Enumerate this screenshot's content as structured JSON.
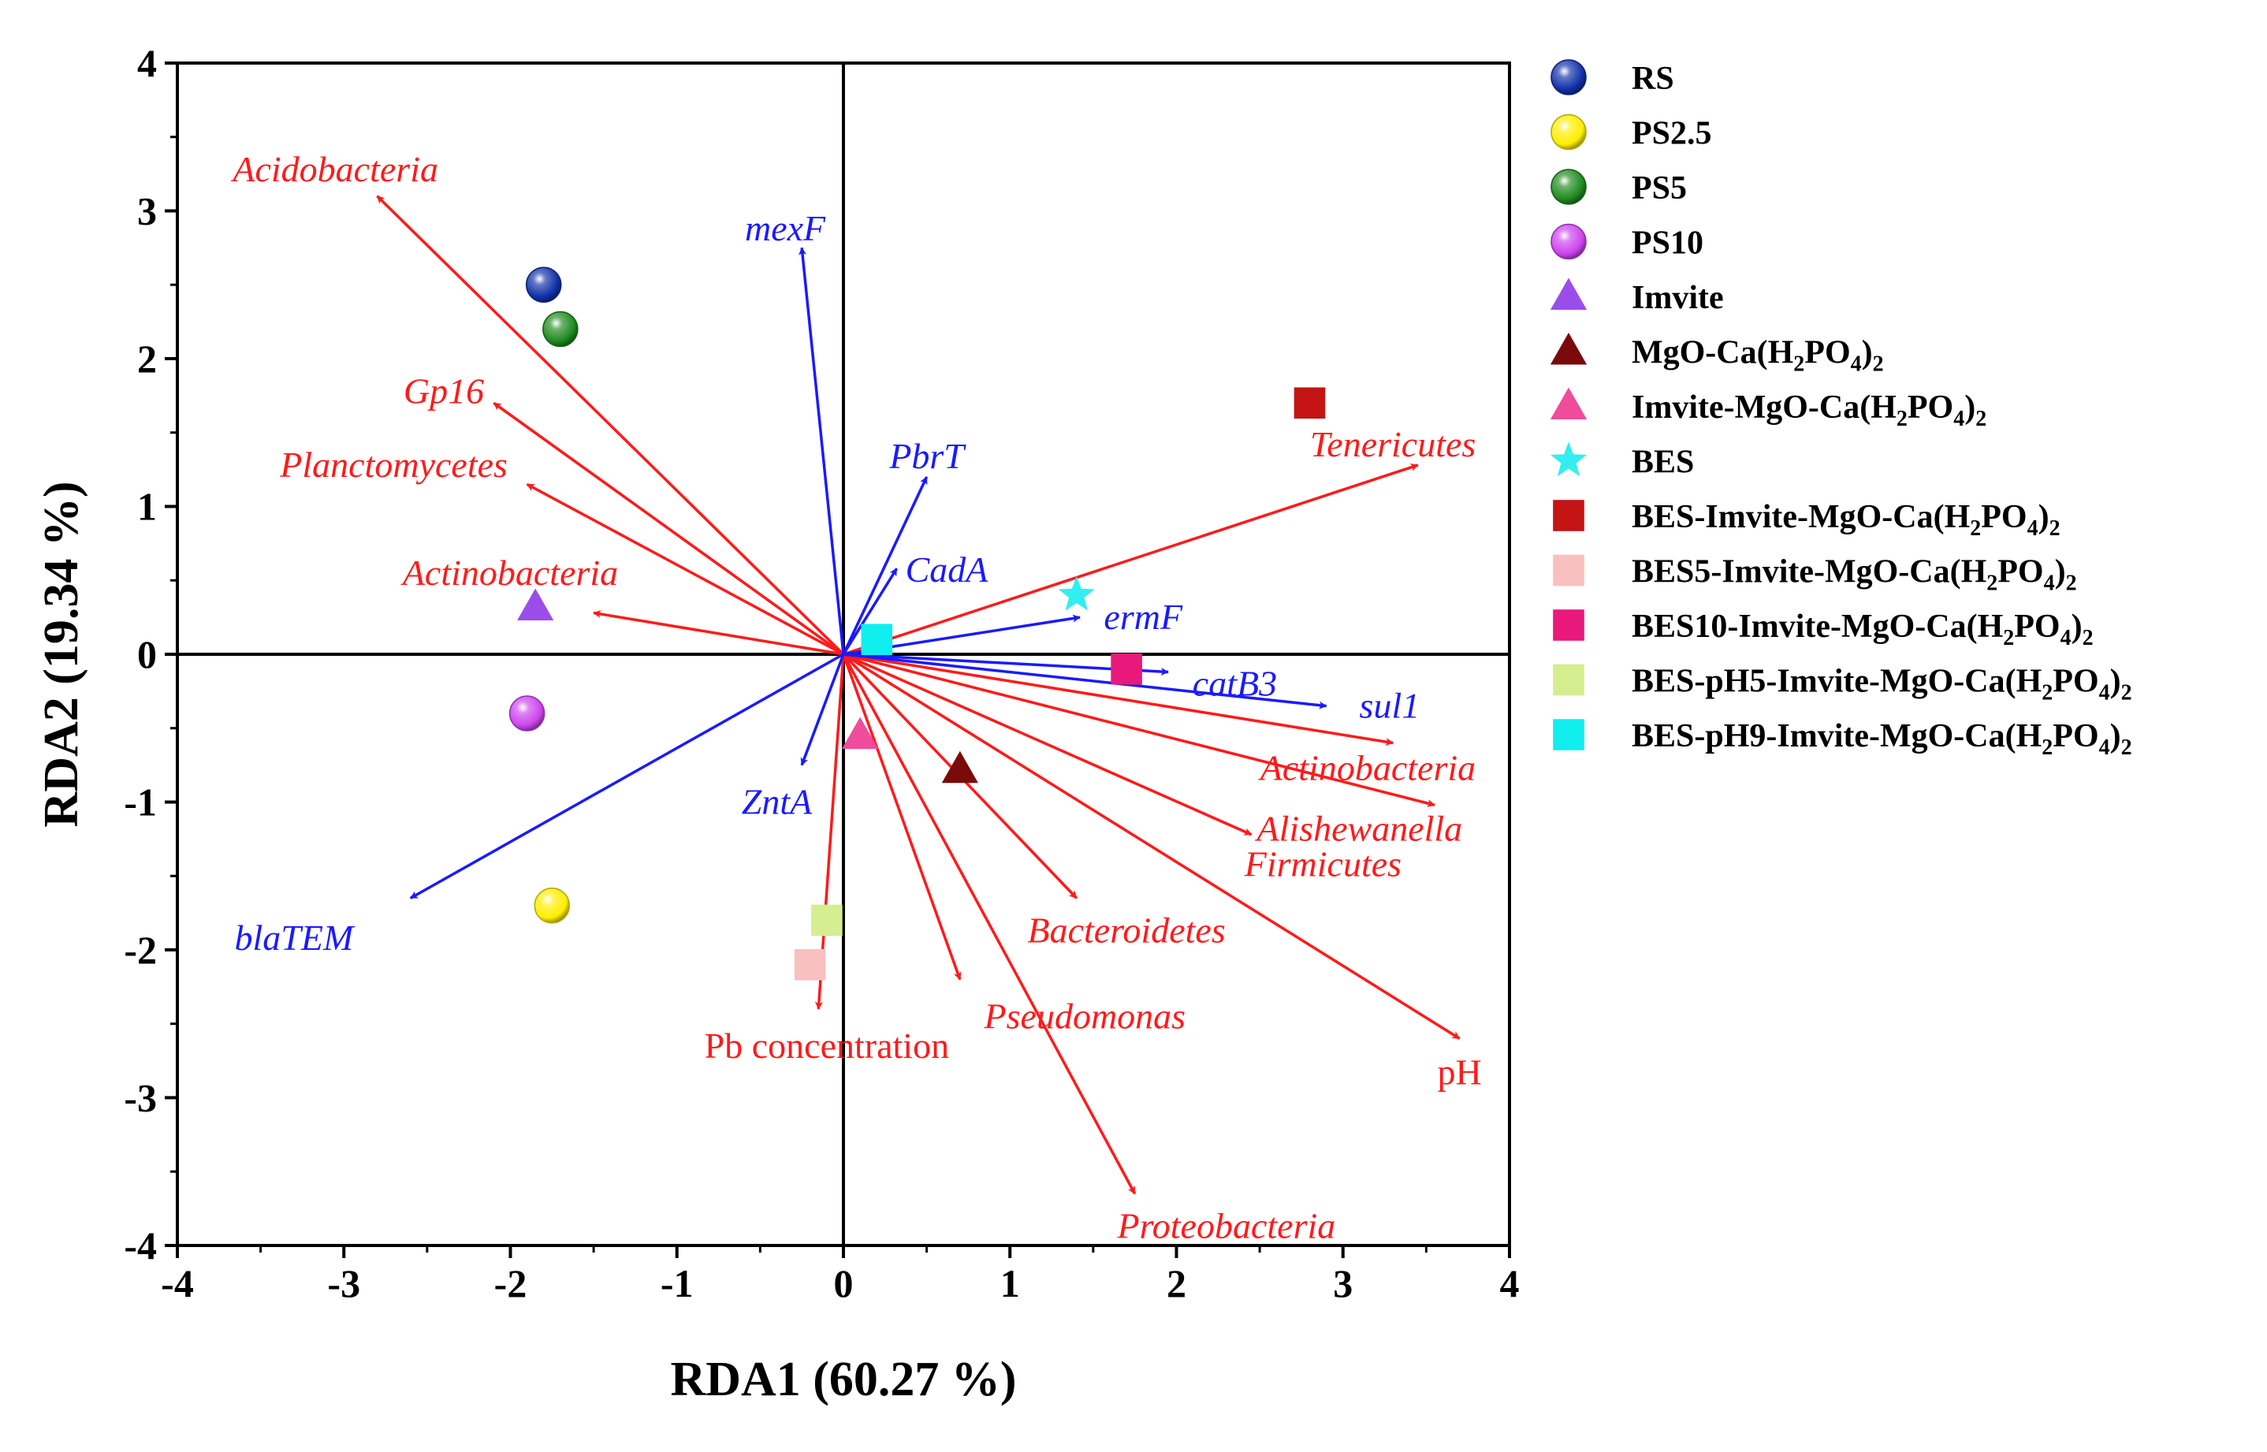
{
  "chart_data": {
    "type": "scatter",
    "subtype": "rda-biplot",
    "title": "",
    "xlabel": "RDA1 (60.27 %)",
    "ylabel": "RDA2 (19.34 %)",
    "xlim": [
      -4,
      4
    ],
    "ylim": [
      -4,
      4
    ],
    "xticks": [
      "-4",
      "-3",
      "-2",
      "-1",
      "0",
      "1",
      "2",
      "3",
      "4"
    ],
    "yticks": [
      "-4",
      "-3",
      "-2",
      "-1",
      "0",
      "1",
      "2",
      "3",
      "4"
    ],
    "grid": false,
    "legend_position": "right",
    "colors": {
      "env_vector": "#ff1a1a",
      "arg_vector": "#1a1aff"
    },
    "red_vectors": [
      {
        "label": "Acidobacteria",
        "italic": true,
        "end": [
          -2.8,
          3.1
        ]
      },
      {
        "label": "Gp16",
        "italic": true,
        "end": [
          -2.1,
          1.7
        ]
      },
      {
        "label": "Planctomycetes",
        "italic": true,
        "end": [
          -1.9,
          1.15
        ]
      },
      {
        "label": "Actinobacteria",
        "italic": true,
        "end": [
          -1.5,
          0.28
        ]
      },
      {
        "label": "Tenericutes",
        "italic": true,
        "end": [
          3.45,
          1.28
        ]
      },
      {
        "label": "Actinobacteria",
        "italic": true,
        "end": [
          3.3,
          -0.6
        ]
      },
      {
        "label": "Alishewanella",
        "italic": true,
        "end": [
          3.55,
          -1.02
        ]
      },
      {
        "label": "Firmicutes",
        "italic": true,
        "end": [
          2.45,
          -1.22
        ]
      },
      {
        "label": "pH",
        "italic": false,
        "end": [
          3.7,
          -2.6
        ]
      },
      {
        "label": "Bacteroidetes",
        "italic": true,
        "end": [
          1.4,
          -1.65
        ]
      },
      {
        "label": "Pseudomonas",
        "italic": true,
        "end": [
          0.7,
          -2.2
        ]
      },
      {
        "label": "Pb concentration",
        "italic": false,
        "end": [
          -0.15,
          -2.4
        ]
      },
      {
        "label": "Proteobacteria",
        "italic": true,
        "end": [
          1.75,
          -3.65
        ]
      }
    ],
    "blue_vectors": [
      {
        "label": "mexF",
        "end": [
          -0.25,
          2.75
        ]
      },
      {
        "label": "PbrT",
        "end": [
          0.5,
          1.2
        ]
      },
      {
        "label": "CadA",
        "end": [
          0.32,
          0.58
        ]
      },
      {
        "label": "ermF",
        "end": [
          1.42,
          0.25
        ]
      },
      {
        "label": "catB3",
        "end": [
          1.95,
          -0.12
        ]
      },
      {
        "label": "sul1",
        "end": [
          2.9,
          -0.35
        ]
      },
      {
        "label": "ZntA",
        "end": [
          -0.25,
          -0.75
        ]
      },
      {
        "label": "blaTEM",
        "end": [
          -2.6,
          -1.65
        ]
      }
    ],
    "points": [
      {
        "name": "RS",
        "label": "RS",
        "marker": "sphere",
        "color": "#1030a8",
        "x": -1.8,
        "y": 2.5
      },
      {
        "name": "PS2.5",
        "label": "PS2.5",
        "marker": "sphere",
        "color": "#ffee00",
        "x": -1.75,
        "y": -1.7
      },
      {
        "name": "PS5",
        "label": "PS5",
        "marker": "sphere",
        "color": "#1e8a1e",
        "x": -1.7,
        "y": 2.2
      },
      {
        "name": "PS10",
        "label": "PS10",
        "marker": "sphere",
        "color": "#cc44ee",
        "x": -1.9,
        "y": -0.4
      },
      {
        "name": "Imvite",
        "label": "Imvite",
        "marker": "triangle",
        "color": "#9b4dea",
        "x": -1.85,
        "y": 0.32
      },
      {
        "name": "MgO-Ca(H2PO4)2",
        "label": "MgO-Ca(H",
        "label_tail": "PO",
        "label_close": ")",
        "marker": "triangle",
        "color": "#7b0a0a",
        "x": 0.7,
        "y": -0.78
      },
      {
        "name": "Imvite-MgO-Ca(H2PO4)2",
        "label": "Imvite-MgO-Ca(H",
        "label_tail": "PO",
        "label_close": ")",
        "marker": "triangle",
        "color": "#f04c9c",
        "x": 0.1,
        "y": -0.55
      },
      {
        "name": "BES",
        "label": "BES",
        "marker": "star",
        "color": "#33eeee",
        "x": 1.4,
        "y": 0.4
      },
      {
        "name": "BES-Imvite-MgO-Ca(H2PO4)2",
        "label": "BES-Imvite-MgO-Ca(H",
        "label_tail": "PO",
        "label_close": ")",
        "marker": "square",
        "color": "#c41414",
        "x": 2.8,
        "y": 1.7
      },
      {
        "name": "BES5-Imvite-MgO-Ca(H2PO4)2",
        "label": "BES5-Imvite-MgO-Ca(H",
        "label_tail": "PO",
        "label_close": ")",
        "marker": "square",
        "color": "#f9c0c0",
        "x": -0.2,
        "y": -2.1
      },
      {
        "name": "BES10-Imvite-MgO-Ca(H2PO4)2",
        "label": "BES10-Imvite-MgO-Ca(H",
        "label_tail": "PO",
        "label_close": ")",
        "marker": "square",
        "color": "#e8197a",
        "x": 1.7,
        "y": -0.1
      },
      {
        "name": "BES-pH5-Imvite-MgO-Ca(H2PO4)2",
        "label": "BES-pH5-Imvite-MgO-Ca(H",
        "label_tail": "PO",
        "label_close": ")",
        "marker": "square",
        "color": "#d4ee90",
        "x": -0.1,
        "y": -1.8
      },
      {
        "name": "BES-pH9-Imvite-MgO-Ca(H2PO4)2",
        "label": "BES-pH9-Imvite-MgO-Ca(H",
        "label_tail": "PO",
        "label_close": ")",
        "marker": "square",
        "color": "#11eeee",
        "x": 0.2,
        "y": 0.1
      }
    ],
    "subscripts": {
      "two": "2",
      "four": "4"
    }
  }
}
